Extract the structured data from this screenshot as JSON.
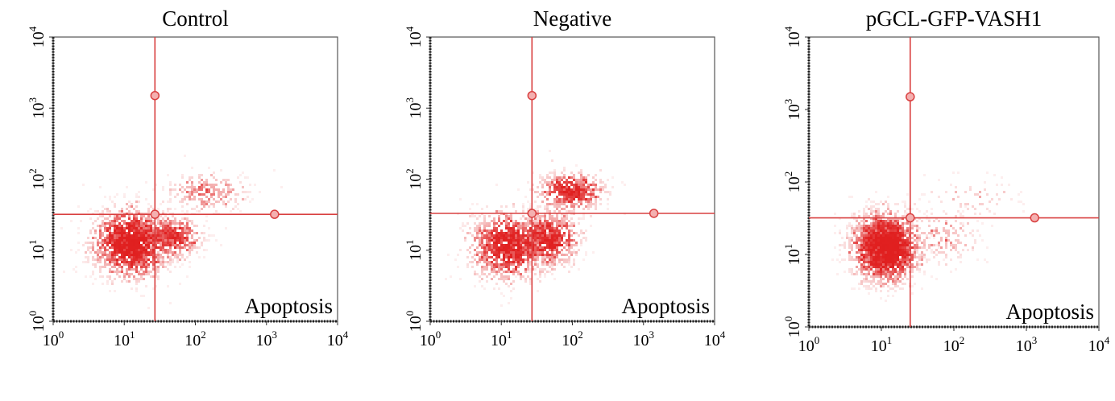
{
  "chart_data": [
    {
      "type": "scatter",
      "title": "Control",
      "scale": "log",
      "xlim": [
        1,
        10000
      ],
      "ylim": [
        1,
        10000
      ],
      "x_ticks": [
        1,
        10,
        100,
        1000,
        10000
      ],
      "y_ticks": [
        1,
        10,
        100,
        1000,
        10000
      ],
      "tick_base": "10",
      "tick_exponents": [
        "0",
        "1",
        "2",
        "3",
        "4"
      ],
      "quadrant_label": "Apoptosis",
      "gate": {
        "x": 27,
        "y": 32,
        "marker_top": 1500,
        "marker_right": 1300
      },
      "color": "#e02020",
      "clusters": [
        {
          "cx": 12,
          "cy": 13,
          "sx": 0.28,
          "sy": 0.25,
          "n": 1500,
          "intensity": 1.0
        },
        {
          "cx": 45,
          "cy": 16,
          "sx": 0.22,
          "sy": 0.16,
          "n": 500,
          "intensity": 0.7
        },
        {
          "cx": 140,
          "cy": 70,
          "sx": 0.3,
          "sy": 0.15,
          "n": 260,
          "intensity": 0.45
        }
      ]
    },
    {
      "type": "scatter",
      "title": "Negative",
      "scale": "log",
      "xlim": [
        1,
        10000
      ],
      "ylim": [
        1,
        10000
      ],
      "x_ticks": [
        1,
        10,
        100,
        1000,
        10000
      ],
      "y_ticks": [
        1,
        10,
        100,
        1000,
        10000
      ],
      "tick_base": "10",
      "tick_exponents": [
        "0",
        "1",
        "2",
        "3",
        "4"
      ],
      "quadrant_label": "Apoptosis",
      "gate": {
        "x": 27,
        "y": 33,
        "marker_top": 1500,
        "marker_right": 1400
      },
      "color": "#e02020",
      "clusters": [
        {
          "cx": 12,
          "cy": 12,
          "sx": 0.28,
          "sy": 0.25,
          "n": 1100,
          "intensity": 0.9
        },
        {
          "cx": 45,
          "cy": 15,
          "sx": 0.22,
          "sy": 0.2,
          "n": 700,
          "intensity": 0.85
        },
        {
          "cx": 90,
          "cy": 70,
          "sx": 0.25,
          "sy": 0.14,
          "n": 520,
          "intensity": 0.8
        }
      ]
    },
    {
      "type": "scatter",
      "title": "pGCL-GFP-VASH1",
      "scale": "log",
      "xlim": [
        1,
        10000
      ],
      "ylim": [
        1,
        10000
      ],
      "x_ticks": [
        1,
        10,
        100,
        1000,
        10000
      ],
      "y_ticks": [
        1,
        10,
        100,
        1000,
        10000
      ],
      "tick_base": "10",
      "tick_exponents": [
        "0",
        "1",
        "2",
        "3",
        "4"
      ],
      "quadrant_label": "Apoptosis",
      "gate": {
        "x": 25,
        "y": 32,
        "marker_top": 1500,
        "marker_right": 1300
      },
      "color": "#e02020",
      "clusters": [
        {
          "cx": 11,
          "cy": 13,
          "sx": 0.24,
          "sy": 0.25,
          "n": 2000,
          "intensity": 1.0
        },
        {
          "cx": 60,
          "cy": 18,
          "sx": 0.3,
          "sy": 0.2,
          "n": 180,
          "intensity": 0.35
        },
        {
          "cx": 180,
          "cy": 60,
          "sx": 0.35,
          "sy": 0.15,
          "n": 70,
          "intensity": 0.25
        }
      ]
    }
  ]
}
